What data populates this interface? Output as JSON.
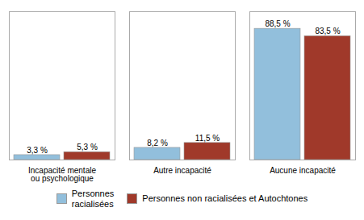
{
  "chart_data": {
    "type": "bar",
    "categories": [
      "Incapacité mentale\nou psychologique",
      "Autre incapacité",
      "Aucune incapacité"
    ],
    "series": [
      {
        "name": "Personnes\nracialisées",
        "color": "#92BFDC",
        "values": [
          3.3,
          8.2,
          88.5
        ],
        "value_labels": [
          "3,3 %",
          "8,2 %",
          "88,5 %"
        ]
      },
      {
        "name": "Personnes non racialisées et Autochtones",
        "color": "#A0392A",
        "values": [
          5.3,
          11.5,
          83.5
        ],
        "value_labels": [
          "5,3 %",
          "11,5 %",
          "83,5 %"
        ]
      }
    ],
    "ylim": [
      0,
      100
    ],
    "data_labels": true,
    "tick_labels": "x",
    "legend": "bottom",
    "grid": false
  }
}
